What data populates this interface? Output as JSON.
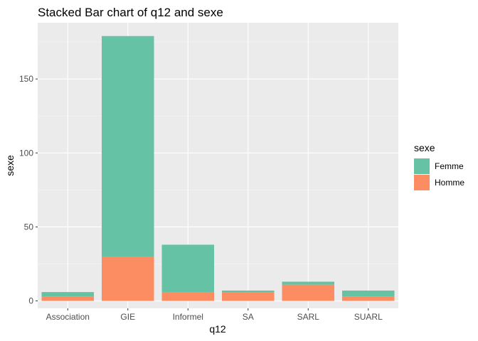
{
  "chart_data": {
    "type": "bar",
    "stacked": true,
    "title": "Stacked Bar chart of q12 and sexe",
    "xlabel": "q12",
    "ylabel": "sexe",
    "categories": [
      "Association",
      "GIE",
      "Informel",
      "SA",
      "SARL",
      "SUARL"
    ],
    "series": [
      {
        "name": "Homme",
        "color": "#fc8d62",
        "values": [
          3,
          30,
          6,
          6,
          11,
          3
        ]
      },
      {
        "name": "Femme",
        "color": "#66c2a5",
        "values": [
          3,
          149,
          32,
          1,
          2,
          4
        ]
      }
    ],
    "yticks": [
      0,
      50,
      100,
      150
    ],
    "ylim": [
      -5,
      188
    ],
    "grid": true,
    "panel_background": "#ebebeb",
    "legend": {
      "title": "sexe",
      "placement": "right",
      "items": [
        "Femme",
        "Homme"
      ]
    }
  }
}
